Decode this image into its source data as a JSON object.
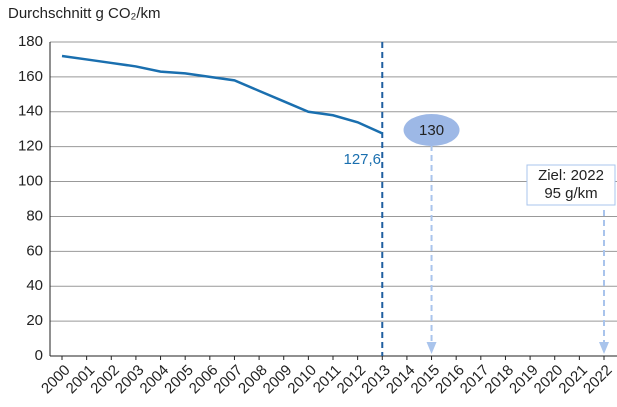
{
  "chart_data": {
    "type": "line",
    "title": "Durchschnitt g CO₂/km",
    "categories": [
      "2000",
      "2001",
      "2002",
      "2003",
      "2004",
      "2005",
      "2006",
      "2007",
      "2008",
      "2009",
      "2010",
      "2011",
      "2012",
      "2013",
      "2014",
      "2015",
      "2016",
      "2017",
      "2018",
      "2019",
      "2020",
      "2021",
      "2022"
    ],
    "series": [
      {
        "name": "Durchschnitt",
        "color": "#1a6faf",
        "values": [
          172,
          170,
          168,
          166,
          163,
          162,
          160,
          158,
          152,
          146,
          140,
          138,
          134,
          127.6,
          null,
          null,
          null,
          null,
          null,
          null,
          null,
          null,
          null
        ]
      }
    ],
    "ylim": [
      0,
      180
    ],
    "yticks": [
      0,
      20,
      40,
      60,
      80,
      100,
      120,
      140,
      160,
      180
    ],
    "grid": true,
    "annotations": [
      "127,6",
      "130",
      "Ziel: 2022",
      "95 g/km"
    ]
  }
}
